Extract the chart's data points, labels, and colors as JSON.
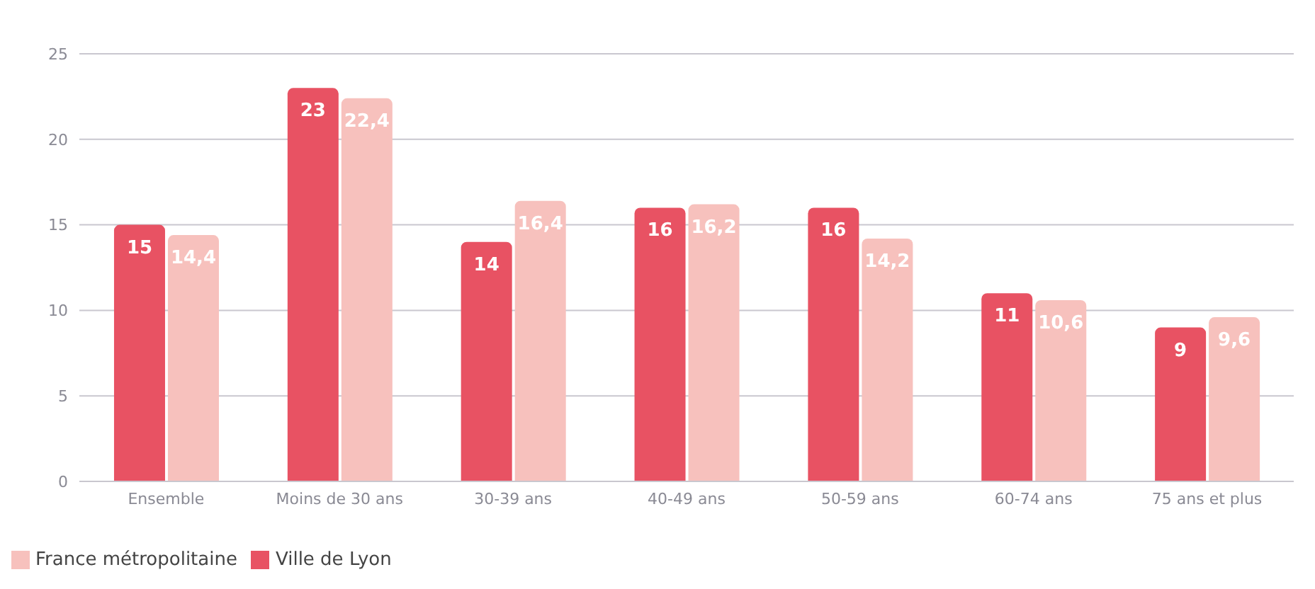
{
  "chart_data": {
    "type": "bar",
    "categories": [
      "Ensemble",
      "Moins de 30 ans",
      "30-39 ans",
      "40-49 ans",
      "50-59 ans",
      "60-74 ans",
      "75 ans et plus"
    ],
    "series": [
      {
        "name": "Ville de Lyon",
        "color": "#e85263",
        "values": [
          15,
          23,
          14,
          16,
          16,
          11,
          9
        ],
        "value_labels": [
          "15",
          "23",
          "14",
          "16",
          "16",
          "11",
          "9"
        ]
      },
      {
        "name": "France métropolitaine",
        "color": "#f7c1bd",
        "values": [
          14.4,
          22.4,
          16.4,
          16.2,
          14.2,
          10.6,
          9.6
        ],
        "value_labels": [
          "14,4",
          "22,4",
          "16,4",
          "16,2",
          "14,2",
          "10,6",
          "9,6"
        ]
      }
    ],
    "ylim": [
      0,
      25
    ],
    "yticks": [
      0,
      5,
      10,
      15,
      20,
      25
    ],
    "grid": "y",
    "legend": "bottom left"
  }
}
